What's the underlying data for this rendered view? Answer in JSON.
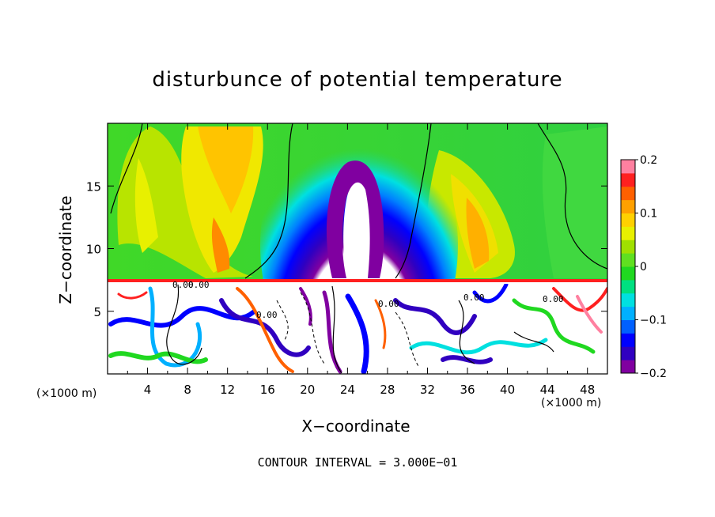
{
  "chart_data": {
    "type": "heatmap",
    "title": "disturbunce of potential temperature",
    "xlabel": "X−coordinate",
    "ylabel": "Z−coordinate",
    "x_unit": "(×1000 m)",
    "contour_note": "CONTOUR INTERVAL = 3.000E−01",
    "xlim": [
      0,
      50
    ],
    "ylim": [
      0,
      20
    ],
    "x_ticks": [
      "4",
      "8",
      "12",
      "16",
      "20",
      "24",
      "28",
      "32",
      "36",
      "40",
      "44",
      "48"
    ],
    "y_ticks": [
      "5",
      "10",
      "15"
    ],
    "x_tick_values": [
      4,
      8,
      12,
      16,
      20,
      24,
      28,
      32,
      36,
      40,
      44,
      48
    ],
    "y_tick_values": [
      5,
      10,
      15
    ],
    "colorbar": {
      "range": [
        -0.2,
        0.2
      ],
      "tick_labels": [
        "0.2",
        "0.1",
        "0",
        "−0.1",
        "−0.2"
      ],
      "tick_values": [
        0.2,
        0.1,
        0,
        -0.1,
        -0.2
      ],
      "colors": [
        "#8000a0",
        "#3000c0",
        "#0000ff",
        "#0060ff",
        "#00b0ff",
        "#00e0e0",
        "#00e080",
        "#20d820",
        "#60e020",
        "#a0e000",
        "#e8f000",
        "#ffd000",
        "#ffa000",
        "#ff6000",
        "#ff2020",
        "#ff80a0"
      ]
    },
    "contour_labels": [
      "0.00",
      "0.00",
      "0.00",
      "0.00",
      "0.00",
      "0.00"
    ]
  }
}
